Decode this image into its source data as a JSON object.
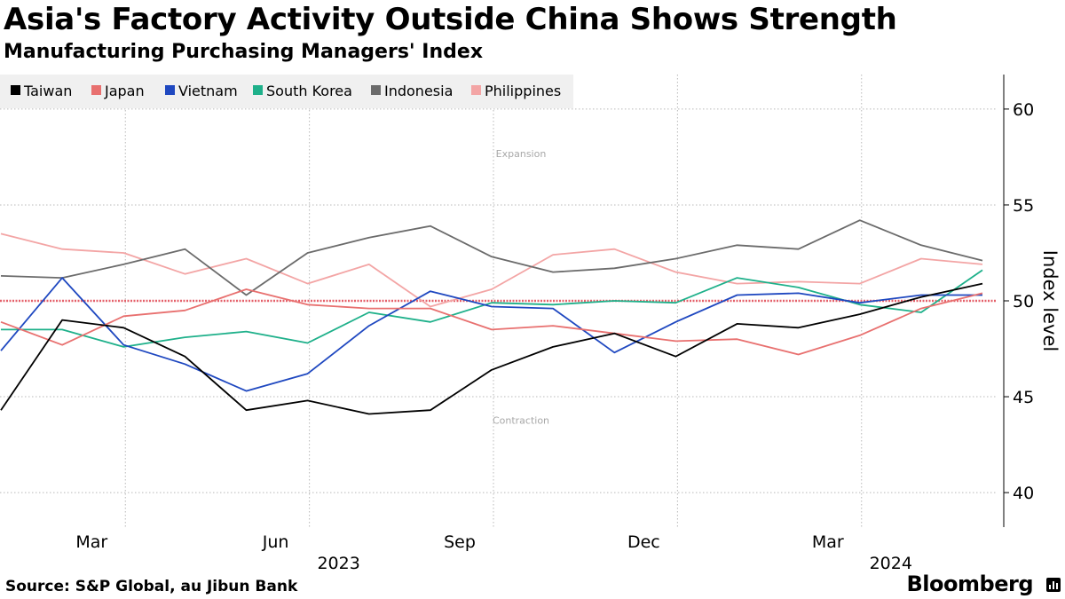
{
  "title": "Asia's Factory Activity Outside China Shows Strength",
  "subtitle": "Manufacturing Purchasing Managers' Index",
  "source": "Source: S&P Global, au Jibun Bank",
  "brand": "Bloomberg",
  "brand_icon": "bloomberg-chart-icon",
  "chart_data": {
    "type": "line",
    "x": [
      "2023-01",
      "2023-02",
      "2023-03",
      "2023-04",
      "2023-05",
      "2023-06",
      "2023-07",
      "2023-08",
      "2023-09",
      "2023-10",
      "2023-11",
      "2023-12",
      "2024-01",
      "2024-02",
      "2024-03",
      "2024-04",
      "2024-05"
    ],
    "x_tick_labels": [
      {
        "x": "2023-03",
        "label": "Mar"
      },
      {
        "x": "2023-06",
        "label": "Jun"
      },
      {
        "x": "2023-09",
        "label": "Sep"
      },
      {
        "x": "2023-12",
        "label": "Dec"
      },
      {
        "x": "2024-03",
        "label": "Mar"
      }
    ],
    "year_labels": [
      {
        "x": "2023-06",
        "label": "2023"
      },
      {
        "x": "2024-03",
        "label": "2024"
      }
    ],
    "ylabel": "Index level",
    "ylim": [
      38.2,
      61.8
    ],
    "yticks": [
      40,
      45,
      50,
      55,
      60
    ],
    "reference_line": {
      "value": 50,
      "color": "#e4606a"
    },
    "annotations": [
      {
        "text": "Expansion",
        "x": "2023-09",
        "y": 57.5
      },
      {
        "text": "Contraction",
        "x": "2023-09",
        "y": 43.6
      }
    ],
    "series": [
      {
        "name": "Taiwan",
        "color": "#000000",
        "values": [
          44.3,
          49.0,
          48.6,
          47.1,
          44.3,
          44.8,
          44.1,
          44.3,
          46.4,
          47.6,
          48.3,
          47.1,
          48.8,
          48.6,
          49.3,
          50.2,
          50.9
        ]
      },
      {
        "name": "Japan",
        "color": "#e8706f",
        "values": [
          48.9,
          47.7,
          49.2,
          49.5,
          50.6,
          49.8,
          49.6,
          49.6,
          48.5,
          48.7,
          48.3,
          47.9,
          48.0,
          47.2,
          48.2,
          49.6,
          50.4
        ]
      },
      {
        "name": "Vietnam",
        "color": "#1f48c0",
        "values": [
          47.4,
          51.2,
          47.7,
          46.7,
          45.3,
          46.2,
          48.7,
          50.5,
          49.7,
          49.6,
          47.3,
          48.9,
          50.3,
          50.4,
          49.9,
          50.3,
          50.3
        ]
      },
      {
        "name": "South Korea",
        "color": "#1eb08a",
        "values": [
          48.5,
          48.5,
          47.6,
          48.1,
          48.4,
          47.8,
          49.4,
          48.9,
          49.9,
          49.8,
          50.0,
          49.9,
          51.2,
          50.7,
          49.8,
          49.4,
          51.6
        ]
      },
      {
        "name": "Indonesia",
        "color": "#6b6b6b",
        "values": [
          51.3,
          51.2,
          51.9,
          52.7,
          50.3,
          52.5,
          53.3,
          53.9,
          52.3,
          51.5,
          51.7,
          52.2,
          52.9,
          52.7,
          54.2,
          52.9,
          52.1
        ]
      },
      {
        "name": "Philippines",
        "color": "#f3a5a5",
        "values": [
          53.5,
          52.7,
          52.5,
          51.4,
          52.2,
          50.9,
          51.9,
          49.7,
          50.6,
          52.4,
          52.7,
          51.5,
          50.9,
          51.0,
          50.9,
          52.2,
          51.9
        ]
      }
    ]
  }
}
